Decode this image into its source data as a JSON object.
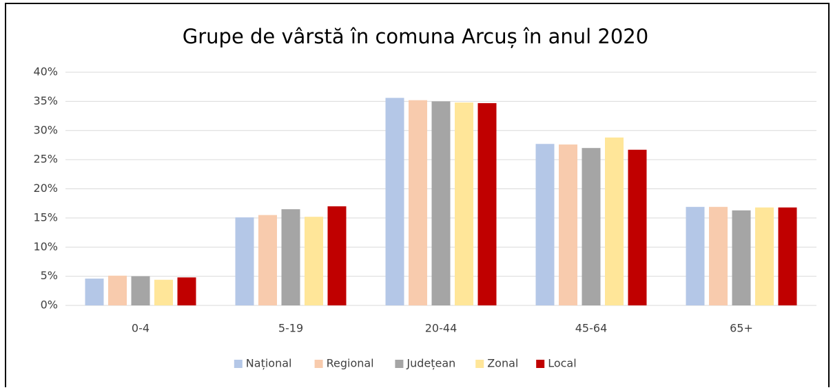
{
  "chart_data": {
    "type": "bar",
    "title": "Grupe de vârstă în comuna Arcuș în anul 2020",
    "categories": [
      "0-4",
      "5-19",
      "20-44",
      "45-64",
      "65+"
    ],
    "series": [
      {
        "name": "Național",
        "color": "#b4c7e7",
        "values": [
          4.6,
          15.1,
          35.6,
          27.7,
          16.9
        ]
      },
      {
        "name": "Regional",
        "color": "#f8cbad",
        "values": [
          5.1,
          15.5,
          35.2,
          27.6,
          16.9
        ]
      },
      {
        "name": "Județean",
        "color": "#a5a5a5",
        "values": [
          5.0,
          16.5,
          35.0,
          27.0,
          16.3
        ]
      },
      {
        "name": "Zonal",
        "color": "#ffe699",
        "values": [
          4.4,
          15.2,
          34.8,
          28.8,
          16.8
        ]
      },
      {
        "name": "Local",
        "color": "#c00000",
        "values": [
          4.8,
          17.0,
          34.7,
          26.7,
          16.8
        ]
      }
    ],
    "ylim": [
      0,
      40
    ],
    "yticks": [
      {
        "value": 0,
        "label": "0%"
      },
      {
        "value": 5,
        "label": "5%"
      },
      {
        "value": 10,
        "label": "10%"
      },
      {
        "value": 15,
        "label": "15%"
      },
      {
        "value": 20,
        "label": "20%"
      },
      {
        "value": 25,
        "label": "25%"
      },
      {
        "value": 30,
        "label": "30%"
      },
      {
        "value": 35,
        "label": "35%"
      },
      {
        "value": 40,
        "label": "40%"
      }
    ],
    "grid": true,
    "legend": "bottom"
  }
}
